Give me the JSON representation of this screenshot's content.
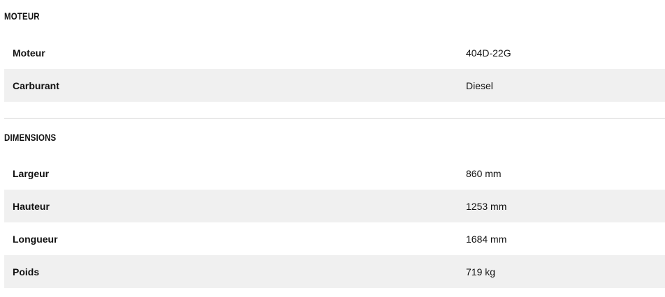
{
  "sections": [
    {
      "title": "MOTEUR",
      "rows": [
        {
          "label": "Moteur",
          "value": "404D-22G"
        },
        {
          "label": "Carburant",
          "value": "Diesel"
        }
      ]
    },
    {
      "title": "DIMENSIONS",
      "rows": [
        {
          "label": "Largeur",
          "value": "860 mm"
        },
        {
          "label": "Hauteur",
          "value": "1253 mm"
        },
        {
          "label": "Longueur",
          "value": "1684 mm"
        },
        {
          "label": "Poids",
          "value": "719 kg"
        }
      ]
    }
  ]
}
